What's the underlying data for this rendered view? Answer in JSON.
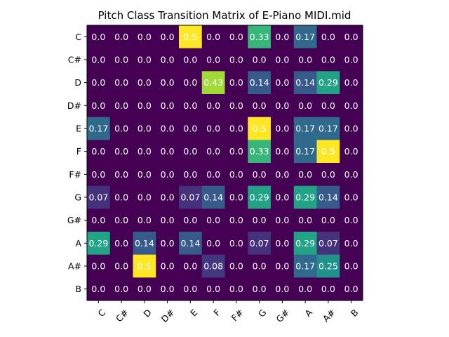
{
  "chart_data": {
    "type": "heatmap",
    "title": "Pitch Class Transition Matrix of E-Piano MIDI.mid",
    "xlabel": "",
    "ylabel": "",
    "colormap": "viridis",
    "vmin": 0.0,
    "vmax": 0.5,
    "x_categories": [
      "C",
      "C#",
      "D",
      "D#",
      "E",
      "F",
      "F#",
      "G",
      "G#",
      "A",
      "A#",
      "B"
    ],
    "y_categories": [
      "C",
      "C#",
      "D",
      "D#",
      "E",
      "F",
      "F#",
      "G",
      "G#",
      "A",
      "A#",
      "B"
    ],
    "values": [
      [
        0.0,
        0.0,
        0.0,
        0.0,
        0.5,
        0.0,
        0.0,
        0.33,
        0.0,
        0.17,
        0.0,
        0.0
      ],
      [
        0.0,
        0.0,
        0.0,
        0.0,
        0.0,
        0.0,
        0.0,
        0.0,
        0.0,
        0.0,
        0.0,
        0.0
      ],
      [
        0.0,
        0.0,
        0.0,
        0.0,
        0.0,
        0.43,
        0.0,
        0.14,
        0.0,
        0.14,
        0.29,
        0.0
      ],
      [
        0.0,
        0.0,
        0.0,
        0.0,
        0.0,
        0.0,
        0.0,
        0.0,
        0.0,
        0.0,
        0.0,
        0.0
      ],
      [
        0.17,
        0.0,
        0.0,
        0.0,
        0.0,
        0.0,
        0.0,
        0.5,
        0.0,
        0.17,
        0.17,
        0.0
      ],
      [
        0.0,
        0.0,
        0.0,
        0.0,
        0.0,
        0.0,
        0.0,
        0.33,
        0.0,
        0.17,
        0.5,
        0.0
      ],
      [
        0.0,
        0.0,
        0.0,
        0.0,
        0.0,
        0.0,
        0.0,
        0.0,
        0.0,
        0.0,
        0.0,
        0.0
      ],
      [
        0.07,
        0.0,
        0.0,
        0.0,
        0.07,
        0.14,
        0.0,
        0.29,
        0.0,
        0.29,
        0.14,
        0.0
      ],
      [
        0.0,
        0.0,
        0.0,
        0.0,
        0.0,
        0.0,
        0.0,
        0.0,
        0.0,
        0.0,
        0.0,
        0.0
      ],
      [
        0.29,
        0.0,
        0.14,
        0.0,
        0.14,
        0.0,
        0.0,
        0.07,
        0.0,
        0.29,
        0.07,
        0.0
      ],
      [
        0.0,
        0.0,
        0.5,
        0.0,
        0.0,
        0.08,
        0.0,
        0.0,
        0.0,
        0.17,
        0.25,
        0.0
      ],
      [
        0.0,
        0.0,
        0.0,
        0.0,
        0.0,
        0.0,
        0.0,
        0.0,
        0.0,
        0.0,
        0.0,
        0.0
      ]
    ],
    "grid": false,
    "legend": "none"
  }
}
